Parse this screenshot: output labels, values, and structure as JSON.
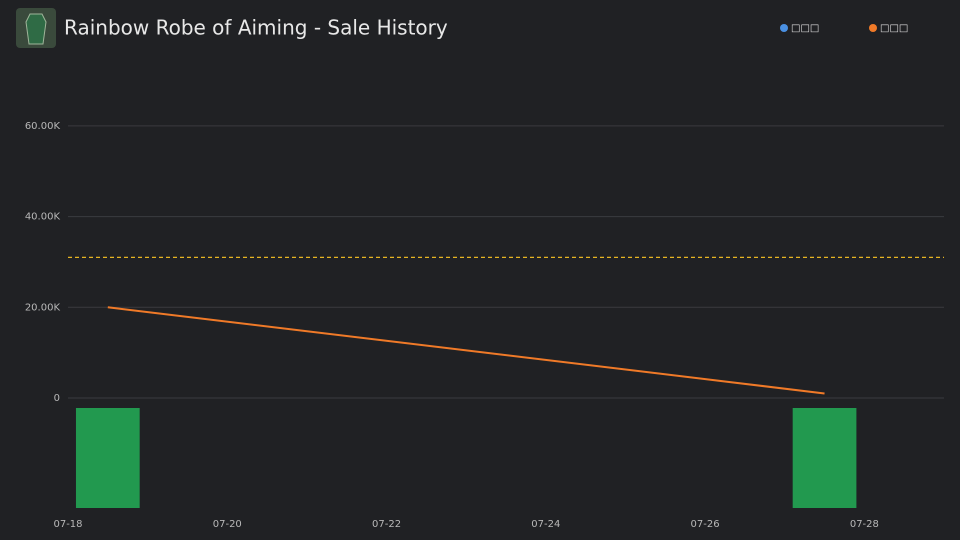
{
  "chart_data": {
    "type": "line",
    "title": "Rainbow Robe of Aiming - Sale History",
    "x": [
      "07-18",
      "07-27"
    ],
    "xlim": [
      "07-18",
      "07-29"
    ],
    "xticks": [
      "07-18",
      "07-20",
      "07-22",
      "07-24",
      "07-26",
      "07-28"
    ],
    "ylim": [
      0,
      70000
    ],
    "yticks": [
      0,
      {
        "value": 20000,
        "label": "20.00K"
      },
      {
        "value": 40000,
        "label": "40.00K"
      },
      {
        "value": 60000,
        "label": "60.00K"
      }
    ],
    "grid": true,
    "reference_line": {
      "value": 31000,
      "color": "#e6b422"
    },
    "series": [
      {
        "name": "□□□",
        "color": "#4a90e2",
        "values": [
          null,
          null
        ]
      },
      {
        "name": "□□□",
        "color": "#f07a28",
        "values": [
          20000,
          1000
        ]
      }
    ],
    "volume": {
      "color": "#22994f",
      "values": [
        1,
        1
      ],
      "ylim": [
        0,
        1
      ]
    }
  }
}
